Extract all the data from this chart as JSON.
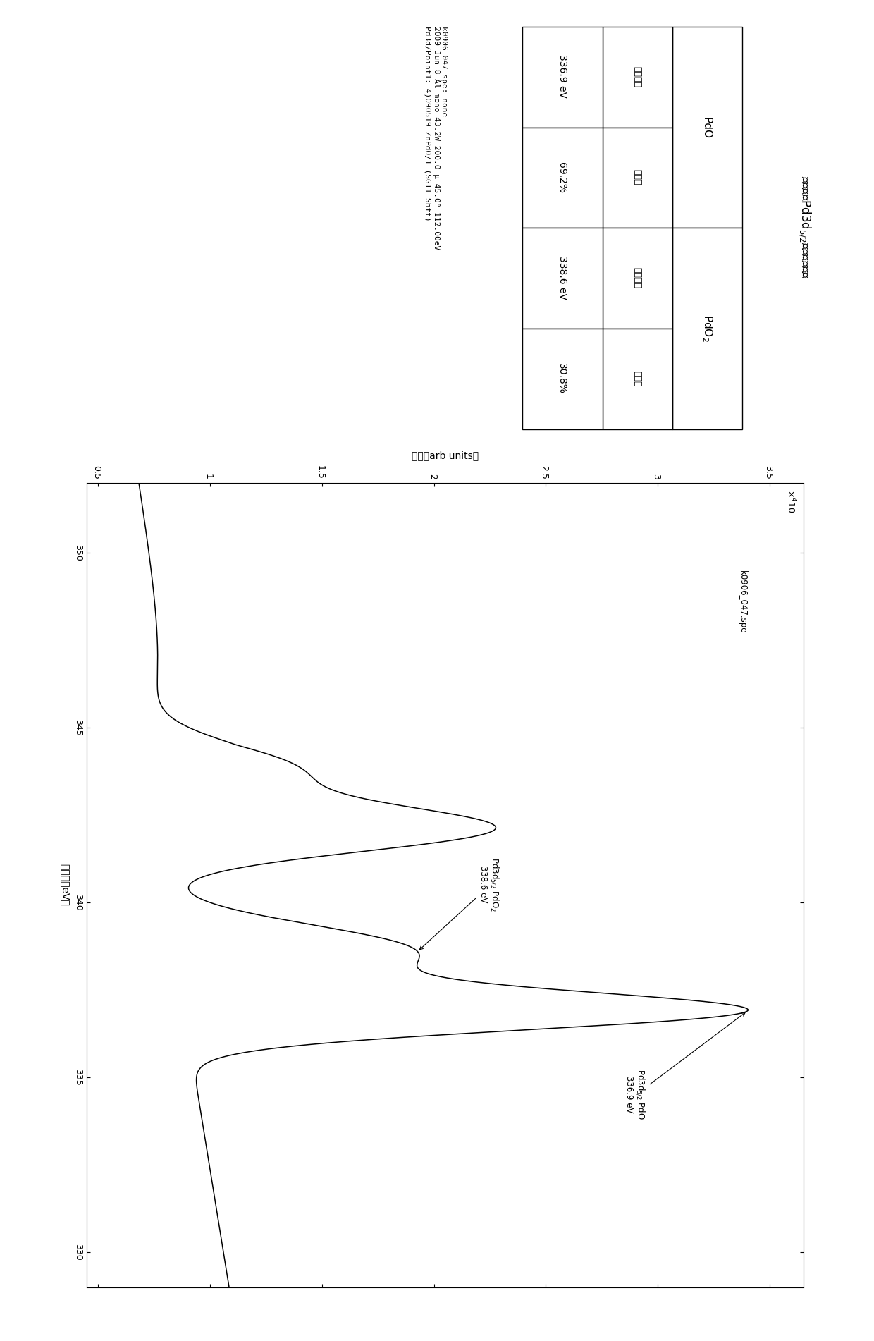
{
  "bg_color": "#ffffff",
  "line_color": "#000000",
  "fig_width": 12.4,
  "fig_height": 19.02,
  "info_line1": "k0906_047_spe: none",
  "info_line2": "2009 Jun 8 Al mono 43.2W 200.0 μ 45.0° 112.00eV",
  "info_line3": "Pd3d/Point1: 4)090519 ZnPdO/1 (SG11 Shft)",
  "file_label": "k0906_047.spe",
  "be_label": "结合能（eV）",
  "intensity_label": "强度（arb units）",
  "be_ticks": [
    330,
    335,
    340,
    345,
    350
  ],
  "intensity_ticks": [
    0.5,
    1.0,
    1.5,
    2.0,
    2.5,
    3.0,
    3.5
  ],
  "intensity_labels": [
    "0.5",
    "1",
    "1.5",
    "2",
    "2.5",
    "3",
    "3.5"
  ],
  "scale_label": "×10",
  "peak1_be": 336.9,
  "peak1_label_1": "Pd3d",
  "peak1_label_sub": "5/2",
  "peak1_label_2": " PdO",
  "peak1_energy": "336.9 eV",
  "peak2_be": 338.6,
  "peak2_label_1": "Pd3d",
  "peak2_label_sub": "5/2",
  "peak2_label_2": " PdO",
  "peak2_label_2b": "2",
  "peak2_energy": "338.6 eV",
  "table_title_1": "最表面的Pd3d",
  "table_title_sub": "5/2",
  "table_title_2": "峰値分离结果",
  "pdo_header": "PdO",
  "pdo2_header": "PdO",
  "pdo2_header_sub": "2",
  "col_h1": "峰値位置",
  "col_h2": "面积比",
  "col_h3": "峰値位置",
  "col_h4": "面积比",
  "pdo_pos": "336.9 eV",
  "pdo_area": "69.2%",
  "pdo2_pos": "338.6 eV",
  "pdo2_area": "30.8%"
}
